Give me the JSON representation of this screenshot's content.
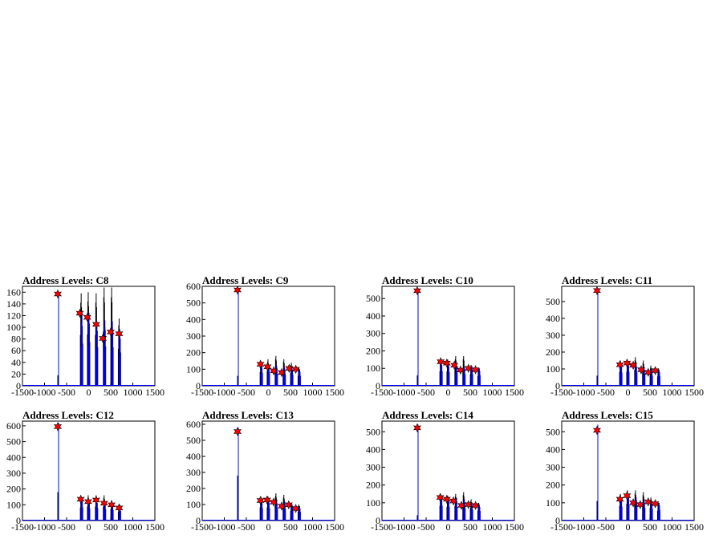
{
  "chart_data": [
    {
      "type": "line",
      "title": "Address Levels: C8",
      "xlim": [
        -1500,
        1500
      ],
      "ylim": [
        0,
        170
      ],
      "yticks": [
        0,
        20,
        40,
        60,
        80,
        100,
        120,
        140,
        160
      ],
      "x": [
        -700,
        -170,
        -10,
        170,
        350,
        520,
        690
      ],
      "series": [
        {
          "color": "#000000",
          "values": [
            18,
            158,
            160,
            158,
            168,
            168,
            115
          ]
        },
        {
          "color": "#0000ff",
          "values": [
            155,
            120,
            125,
            110,
            112,
            110,
            95
          ]
        }
      ],
      "peaks": [
        {
          "x": -700,
          "y": 157
        },
        {
          "x": -200,
          "y": 124
        },
        {
          "x": -30,
          "y": 117
        },
        {
          "x": 170,
          "y": 105
        },
        {
          "x": 320,
          "y": 81
        },
        {
          "x": 500,
          "y": 92
        },
        {
          "x": 690,
          "y": 89
        }
      ]
    },
    {
      "type": "line",
      "title": "Address Levels: C9",
      "xlim": [
        -1500,
        1500
      ],
      "ylim": [
        0,
        600
      ],
      "yticks": [
        0,
        100,
        200,
        300,
        400,
        500,
        600
      ],
      "x": [
        -700,
        -170,
        -10,
        170,
        350,
        520,
        690
      ],
      "series": [
        {
          "color": "#000000",
          "values": [
            60,
            150,
            160,
            180,
            160,
            140,
            110
          ]
        },
        {
          "color": "#0000ff",
          "values": [
            590,
            130,
            125,
            120,
            110,
            110,
            100
          ]
        }
      ],
      "peaks": [
        {
          "x": -700,
          "y": 578
        },
        {
          "x": -180,
          "y": 130
        },
        {
          "x": -20,
          "y": 115
        },
        {
          "x": 120,
          "y": 90
        },
        {
          "x": 300,
          "y": 80
        },
        {
          "x": 470,
          "y": 105
        },
        {
          "x": 620,
          "y": 100
        }
      ]
    },
    {
      "type": "line",
      "title": "Address Levels: C10",
      "xlim": [
        -1500,
        1500
      ],
      "ylim": [
        0,
        570
      ],
      "yticks": [
        0,
        100,
        200,
        300,
        400,
        500
      ],
      "x": [
        -700,
        -170,
        -10,
        170,
        350,
        520,
        690
      ],
      "series": [
        {
          "color": "#000000",
          "values": [
            60,
            150,
            150,
            170,
            170,
            120,
            100
          ]
        },
        {
          "color": "#0000ff",
          "values": [
            560,
            140,
            130,
            125,
            110,
            110,
            100
          ]
        }
      ],
      "peaks": [
        {
          "x": -700,
          "y": 545
        },
        {
          "x": -170,
          "y": 138
        },
        {
          "x": -30,
          "y": 130
        },
        {
          "x": 140,
          "y": 118
        },
        {
          "x": 280,
          "y": 90
        },
        {
          "x": 460,
          "y": 100
        },
        {
          "x": 620,
          "y": 92
        }
      ]
    },
    {
      "type": "line",
      "title": "Address Levels: C11",
      "xlim": [
        -1500,
        1500
      ],
      "ylim": [
        0,
        590
      ],
      "yticks": [
        0,
        100,
        200,
        300,
        400,
        500
      ],
      "x": [
        -700,
        -170,
        -10,
        170,
        350,
        520,
        690
      ],
      "series": [
        {
          "color": "#000000",
          "values": [
            60,
            150,
            150,
            170,
            150,
            120,
            100
          ]
        },
        {
          "color": "#0000ff",
          "values": [
            580,
            130,
            140,
            130,
            110,
            100,
            95
          ]
        }
      ],
      "peaks": [
        {
          "x": -700,
          "y": 565
        },
        {
          "x": -180,
          "y": 125
        },
        {
          "x": -20,
          "y": 135
        },
        {
          "x": 120,
          "y": 122
        },
        {
          "x": 300,
          "y": 95
        },
        {
          "x": 460,
          "y": 80
        },
        {
          "x": 620,
          "y": 90
        }
      ]
    },
    {
      "type": "line",
      "title": "Address Levels: C12",
      "xlim": [
        -1500,
        1500
      ],
      "ylim": [
        0,
        630
      ],
      "yticks": [
        0,
        100,
        200,
        300,
        400,
        500,
        600
      ],
      "x": [
        -700,
        -170,
        -10,
        170,
        350,
        520,
        690
      ],
      "series": [
        {
          "color": "#000000",
          "values": [
            180,
            150,
            160,
            160,
            160,
            130,
            100
          ]
        },
        {
          "color": "#0000ff",
          "values": [
            620,
            140,
            130,
            130,
            120,
            110,
            100
          ]
        }
      ],
      "peaks": [
        {
          "x": -700,
          "y": 595
        },
        {
          "x": -180,
          "y": 135
        },
        {
          "x": -10,
          "y": 120
        },
        {
          "x": 170,
          "y": 130
        },
        {
          "x": 350,
          "y": 110
        },
        {
          "x": 520,
          "y": 100
        },
        {
          "x": 690,
          "y": 80
        }
      ]
    },
    {
      "type": "line",
      "title": "Address Levels: C13",
      "xlim": [
        -1500,
        1500
      ],
      "ylim": [
        0,
        620
      ],
      "yticks": [
        0,
        100,
        200,
        300,
        400,
        500,
        600
      ],
      "x": [
        -700,
        -170,
        -10,
        170,
        350,
        520,
        690
      ],
      "series": [
        {
          "color": "#000000",
          "values": [
            280,
            150,
            150,
            170,
            160,
            110,
            100
          ]
        },
        {
          "color": "#0000ff",
          "values": [
            580,
            130,
            130,
            125,
            120,
            100,
            90
          ]
        }
      ],
      "peaks": [
        {
          "x": -700,
          "y": 555
        },
        {
          "x": -180,
          "y": 125
        },
        {
          "x": -30,
          "y": 128
        },
        {
          "x": 120,
          "y": 115
        },
        {
          "x": 300,
          "y": 90
        },
        {
          "x": 460,
          "y": 98
        },
        {
          "x": 620,
          "y": 75
        }
      ]
    },
    {
      "type": "line",
      "title": "Address Levels: C14",
      "xlim": [
        -1500,
        1500
      ],
      "ylim": [
        0,
        560
      ],
      "yticks": [
        0,
        100,
        200,
        300,
        400,
        500
      ],
      "x": [
        -700,
        -170,
        -10,
        170,
        350,
        520,
        690
      ],
      "series": [
        {
          "color": "#000000",
          "values": [
            30,
            150,
            140,
            150,
            160,
            120,
            100
          ]
        },
        {
          "color": "#0000ff",
          "values": [
            540,
            140,
            130,
            130,
            120,
            100,
            90
          ]
        }
      ],
      "peaks": [
        {
          "x": -700,
          "y": 522
        },
        {
          "x": -180,
          "y": 130
        },
        {
          "x": -30,
          "y": 120
        },
        {
          "x": 120,
          "y": 110
        },
        {
          "x": 300,
          "y": 85
        },
        {
          "x": 460,
          "y": 90
        },
        {
          "x": 620,
          "y": 85
        }
      ]
    },
    {
      "type": "line",
      "title": "Address Levels: C15",
      "xlim": [
        -1500,
        1500
      ],
      "ylim": [
        0,
        560
      ],
      "yticks": [
        0,
        100,
        200,
        300,
        400,
        500
      ],
      "x": [
        -700,
        -170,
        -10,
        170,
        350,
        520,
        690
      ],
      "series": [
        {
          "color": "#000000",
          "values": [
            110,
            150,
            170,
            170,
            160,
            130,
            100
          ]
        },
        {
          "color": "#0000ff",
          "values": [
            540,
            130,
            150,
            130,
            120,
            110,
            100
          ]
        }
      ],
      "peaks": [
        {
          "x": -700,
          "y": 508
        },
        {
          "x": -180,
          "y": 120
        },
        {
          "x": -20,
          "y": 140
        },
        {
          "x": 120,
          "y": 100
        },
        {
          "x": 280,
          "y": 90
        },
        {
          "x": 460,
          "y": 105
        },
        {
          "x": 620,
          "y": 95
        }
      ]
    }
  ],
  "xticks": [
    -1500,
    -1000,
    -500,
    0,
    500,
    1000,
    1500
  ],
  "colors": {
    "marker": "#ff0000",
    "marker_edge": "#000000",
    "axis": "#000000",
    "background": "#ffffff"
  }
}
